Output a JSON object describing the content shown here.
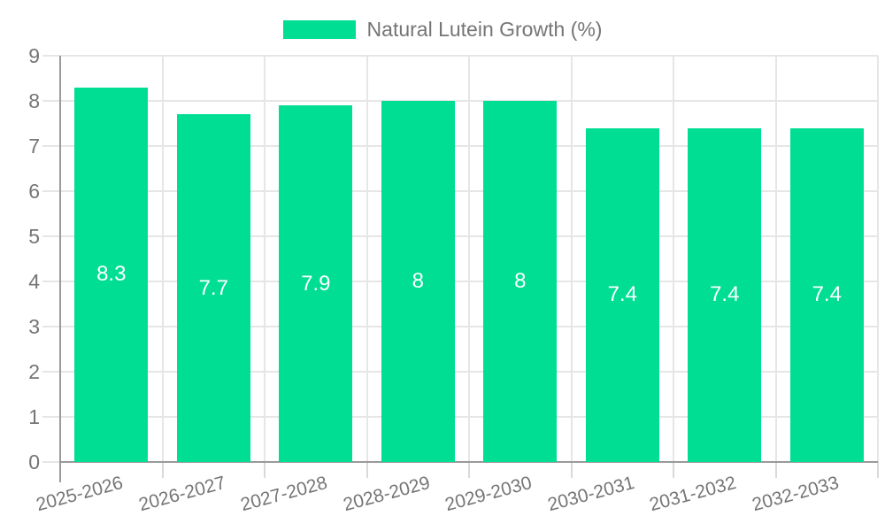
{
  "chart_data": {
    "type": "bar",
    "title": "",
    "legend": {
      "label": "Natural Lutein Growth (%)",
      "position": "top"
    },
    "categories": [
      "2025-2026",
      "2026-2027",
      "2027-2028",
      "2028-2029",
      "2029-2030",
      "2030-2031",
      "2031-2032",
      "2032-2033"
    ],
    "values": [
      8.3,
      7.7,
      7.9,
      8,
      8,
      7.4,
      7.4,
      7.4
    ],
    "xlabel": "",
    "ylabel": "",
    "ylim": [
      0,
      9
    ],
    "y_ticks": [
      0,
      1,
      2,
      3,
      4,
      5,
      6,
      7,
      8,
      9
    ],
    "grid": true,
    "colors": {
      "bar": "#00de93",
      "grid": "#e6e6e6",
      "axis": "#9a9a9a",
      "tick_label": "#757575",
      "value_label": "#ffffff"
    }
  }
}
